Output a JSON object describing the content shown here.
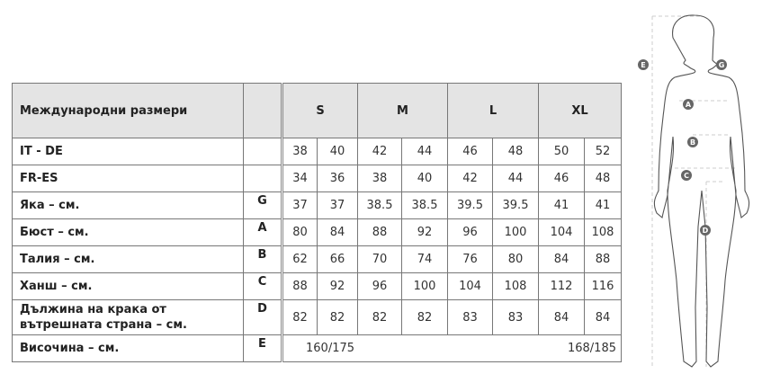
{
  "table": {
    "header": {
      "label": "Международни размери",
      "letter": "",
      "sizes": [
        "S",
        "M",
        "L",
        "XL"
      ]
    },
    "rows": [
      {
        "label": "IT - DE",
        "letter": "",
        "values": [
          "38",
          "40",
          "42",
          "44",
          "46",
          "48",
          "50",
          "52"
        ]
      },
      {
        "label": "FR-ES",
        "letter": "",
        "values": [
          "34",
          "36",
          "38",
          "40",
          "42",
          "44",
          "46",
          "48"
        ]
      },
      {
        "label": "Яка – см.",
        "letter": "G",
        "values": [
          "37",
          "37",
          "38.5",
          "38.5",
          "39.5",
          "39.5",
          "41",
          "41"
        ]
      },
      {
        "label": "Бюст – см.",
        "letter": "A",
        "values": [
          "80",
          "84",
          "88",
          "92",
          "96",
          "100",
          "104",
          "108"
        ]
      },
      {
        "label": "Талия – см.",
        "letter": "B",
        "values": [
          "62",
          "66",
          "70",
          "74",
          "76",
          "80",
          "84",
          "88"
        ]
      },
      {
        "label": "Ханш – см.",
        "letter": "C",
        "values": [
          "88",
          "92",
          "96",
          "100",
          "104",
          "108",
          "112",
          "116"
        ]
      },
      {
        "label": "Дължина на крака от вътрешната страна – см.",
        "letter": "D",
        "values": [
          "82",
          "82",
          "82",
          "82",
          "83",
          "83",
          "84",
          "84"
        ]
      }
    ],
    "height_row": {
      "label": "Височина – см.",
      "letter": "E",
      "values": [
        "160/175",
        "168/185"
      ]
    }
  },
  "figure": {
    "markers": [
      "E",
      "G",
      "A",
      "B",
      "C",
      "D"
    ],
    "marker_color": "#666666"
  }
}
